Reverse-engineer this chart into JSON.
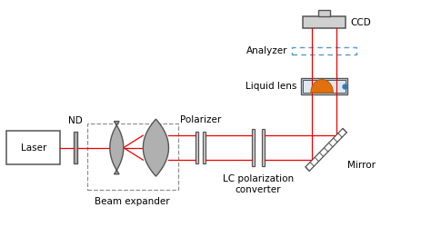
{
  "fig_width": 4.74,
  "fig_height": 2.72,
  "dpi": 100,
  "bg_color": "#ffffff",
  "beam_color": "#ee0000",
  "gray_color": "#b0b0b0",
  "dark_gray": "#555555",
  "light_gray": "#d0d0d0",
  "mid_gray": "#909090",
  "blue_dashed": "#5599cc",
  "orange_dome": "#e07010",
  "blue_fill": "#88aacc",
  "labels": {
    "laser": "Laser",
    "nd": "ND",
    "beam_expander": "Beam expander",
    "polarizer": "Polarizer",
    "lc_converter": "LC polarization\nconverter",
    "liquid_lens": "Liquid lens",
    "analyzer": "Analyzer",
    "ccd": "CCD",
    "mirror": "Mirror"
  },
  "xlim": [
    0,
    10
  ],
  "ylim": [
    0,
    5.5
  ]
}
